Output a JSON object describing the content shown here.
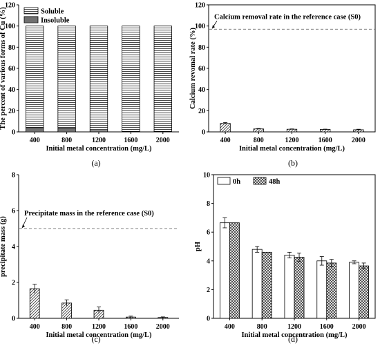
{
  "chart_data": [
    {
      "panel": "(a)",
      "type": "bar",
      "stacked": true,
      "categories": [
        "400",
        "800",
        "1200",
        "1600",
        "2000"
      ],
      "series": [
        {
          "name": "Soluble",
          "values": [
            96,
            96.5,
            99,
            99.5,
            99.5
          ],
          "pattern": "hlines"
        },
        {
          "name": "Insoluble",
          "values": [
            4,
            3.5,
            1,
            0.5,
            0.5
          ],
          "pattern": "dense"
        }
      ],
      "xlabel": "Initial metal concentration (mg/L)",
      "ylabel": "The percent of various forms of Cu (%)",
      "ylim": [
        0,
        120
      ],
      "yticks": [
        0,
        20,
        40,
        60,
        80,
        100,
        120
      ],
      "legend": "top-left",
      "grid": false
    },
    {
      "panel": "(b)",
      "type": "bar",
      "categories": [
        "400",
        "800",
        "1200",
        "1600",
        "2000"
      ],
      "series": [
        {
          "name": "",
          "values": [
            8,
            2.8,
            2.5,
            2.3,
            2.0
          ],
          "errors": [
            0.8,
            0.4,
            0.3,
            0.3,
            0.5
          ],
          "pattern": "diag"
        }
      ],
      "reference_line": {
        "value": 97,
        "label": "Calcium removal rate in the reference case (S0)"
      },
      "xlabel": "Initial metal concentration (mg/L)",
      "ylabel": "Calcium revomal rate (%)",
      "ylim": [
        0,
        120
      ],
      "yticks": [
        0,
        20,
        40,
        60,
        80,
        100,
        120
      ],
      "grid": false
    },
    {
      "panel": "(c)",
      "type": "bar",
      "categories": [
        "400",
        "800",
        "1200",
        "1600",
        "2000"
      ],
      "series": [
        {
          "name": "",
          "values": [
            1.65,
            0.85,
            0.45,
            0.07,
            0.05
          ],
          "errors": [
            0.25,
            0.18,
            0.18,
            0.05,
            0.03
          ],
          "pattern": "diag"
        }
      ],
      "reference_line": {
        "value": 5.0,
        "label": "Precipitate mass in the reference case (S0)"
      },
      "xlabel": "Initial metal concentration (mg/L)",
      "ylabel": "precipitate mass (g)",
      "ylim": [
        0,
        8
      ],
      "yticks": [
        0,
        2,
        4,
        6,
        8
      ],
      "grid": false
    },
    {
      "panel": "(d)",
      "type": "bar",
      "categories": [
        "400",
        "800",
        "1200",
        "1600",
        "2000"
      ],
      "series": [
        {
          "name": "0h",
          "values": [
            6.65,
            4.8,
            4.4,
            4.0,
            3.9
          ],
          "errors": [
            0.35,
            0.2,
            0.2,
            0.3,
            0.1
          ],
          "pattern": "none"
        },
        {
          "name": "48h",
          "values": [
            6.65,
            4.6,
            4.25,
            3.85,
            3.65
          ],
          "errors": [
            0,
            0,
            0.3,
            0.25,
            0.2
          ],
          "pattern": "cross"
        }
      ],
      "xlabel": "Initial metal concentration (mg/L)",
      "ylabel": "pH",
      "ylim": [
        0,
        10
      ],
      "yticks": [
        0,
        2,
        4,
        6,
        8,
        10
      ],
      "legend": "top-left",
      "grid": false
    }
  ]
}
